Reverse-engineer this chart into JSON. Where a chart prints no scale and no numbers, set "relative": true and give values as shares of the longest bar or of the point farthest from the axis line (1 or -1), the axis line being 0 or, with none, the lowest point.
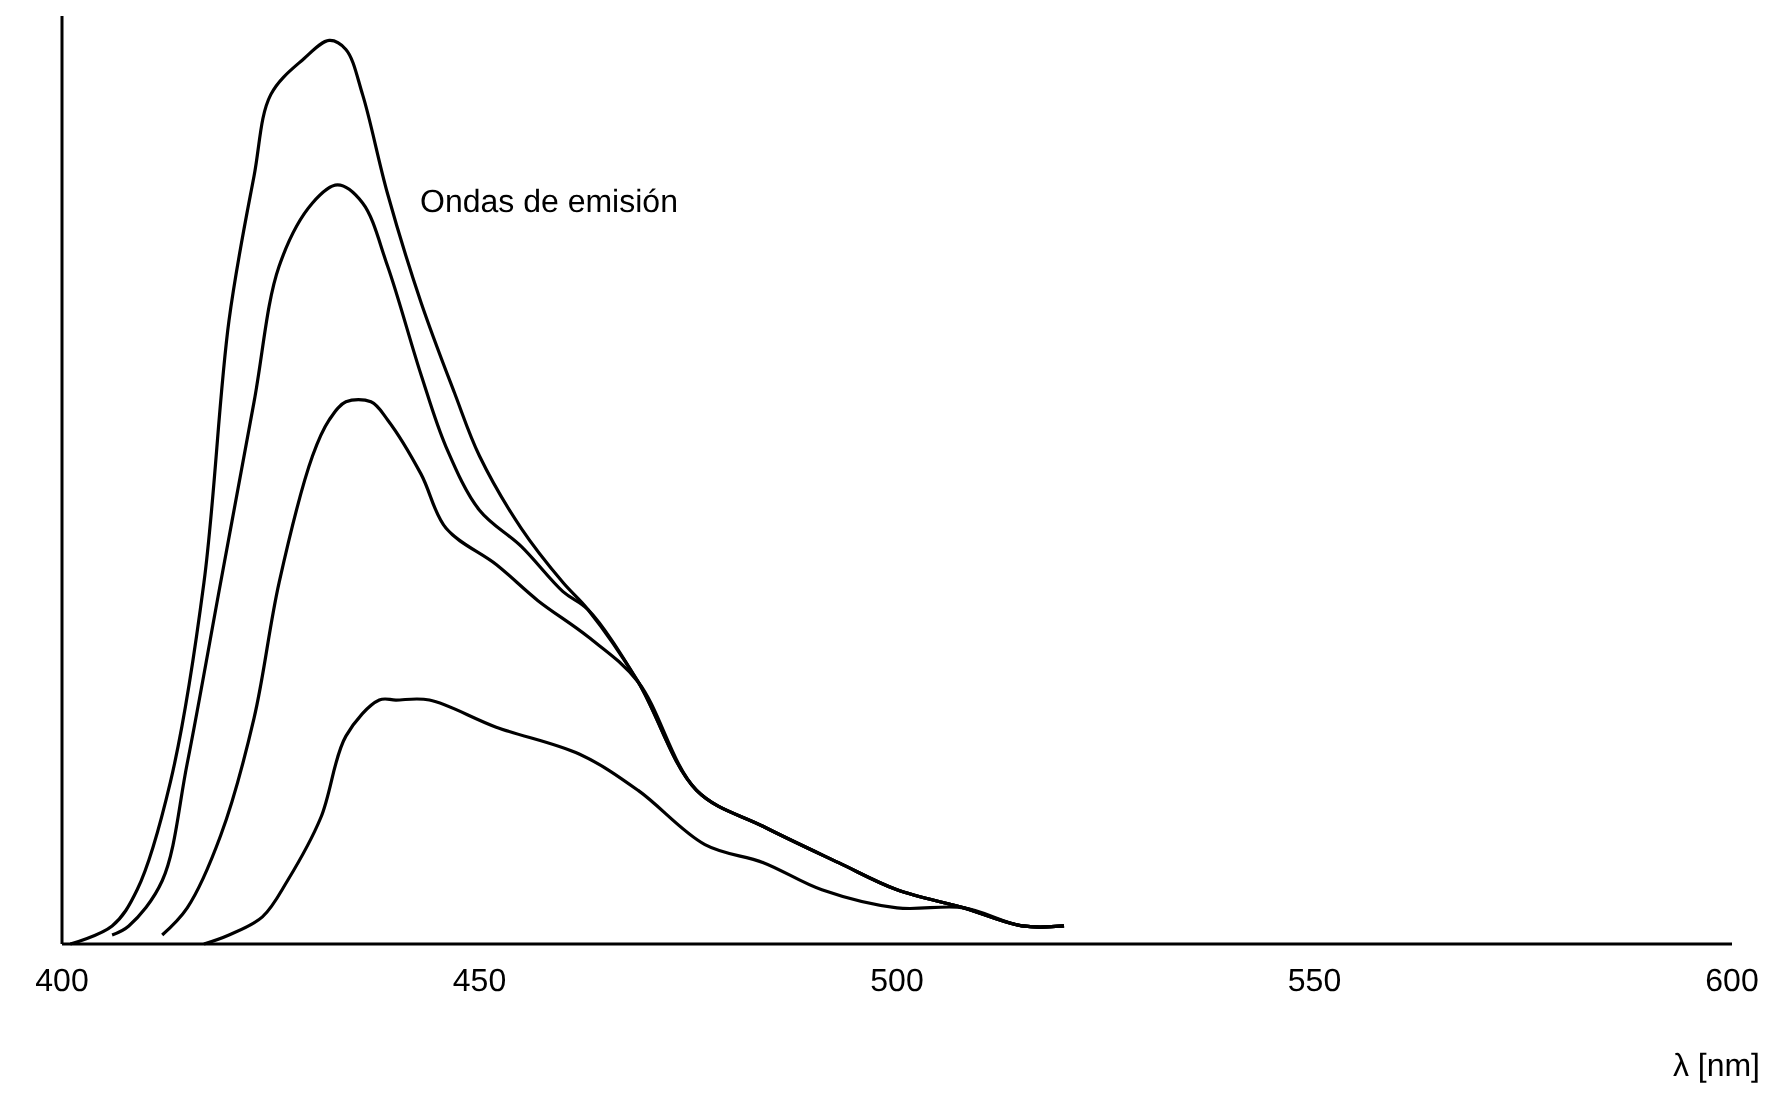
{
  "chart_data": {
    "type": "line",
    "relative": true,
    "xlabel": "λ [nm]",
    "annotations": [
      "Ondas de emisión"
    ],
    "xlim": [
      400,
      600
    ],
    "xticks": [
      400,
      450,
      500,
      550,
      600
    ],
    "tick_labels": "x",
    "grid": false,
    "marker": "none",
    "line_style": "solid",
    "series": [
      {
        "color": "#000000",
        "x": [
          401,
          406,
          409,
          413,
          417,
          420,
          423,
          425,
          429,
          432,
          434,
          436,
          439,
          443,
          447,
          450,
          455,
          460,
          463,
          469,
          476,
          484,
          493,
          500,
          508,
          515,
          520
        ],
        "values": [
          0.0,
          0.02,
          0.06,
          0.18,
          0.4,
          0.69,
          0.85,
          0.94,
          0.98,
          1.0,
          0.99,
          0.94,
          0.83,
          0.71,
          0.61,
          0.54,
          0.46,
          0.4,
          0.37,
          0.29,
          0.17,
          0.13,
          0.09,
          0.06,
          0.04,
          0.02,
          0.02
        ]
      },
      {
        "color": "#000000",
        "x": [
          406,
          408,
          412,
          415,
          419,
          423,
          426,
          430,
          433,
          436,
          439,
          443,
          446,
          450,
          455,
          460,
          463,
          469,
          476,
          484,
          493,
          500,
          508,
          515,
          520
        ],
        "values": [
          0.01,
          0.02,
          0.07,
          0.2,
          0.4,
          0.6,
          0.75,
          0.82,
          0.84,
          0.82,
          0.75,
          0.63,
          0.55,
          0.48,
          0.44,
          0.39,
          0.37,
          0.29,
          0.17,
          0.13,
          0.09,
          0.06,
          0.04,
          0.02,
          0.02
        ]
      },
      {
        "color": "#000000",
        "x": [
          412,
          415,
          419,
          423,
          426,
          430,
          432,
          434,
          437,
          439,
          443,
          446,
          452,
          457,
          463,
          469,
          476,
          484,
          493,
          500,
          508,
          515,
          520
        ],
        "values": [
          0.01,
          0.04,
          0.12,
          0.25,
          0.4,
          0.54,
          0.58,
          0.6,
          0.6,
          0.58,
          0.52,
          0.46,
          0.42,
          0.38,
          0.34,
          0.29,
          0.17,
          0.13,
          0.09,
          0.06,
          0.04,
          0.02,
          0.02
        ]
      },
      {
        "color": "#000000",
        "x": [
          417,
          420,
          424,
          427,
          431,
          434,
          438,
          440,
          444,
          452,
          462,
          469,
          477,
          484,
          491,
          500,
          508,
          515,
          520
        ],
        "values": [
          0.0,
          0.01,
          0.03,
          0.07,
          0.14,
          0.23,
          0.27,
          0.27,
          0.27,
          0.24,
          0.21,
          0.17,
          0.11,
          0.09,
          0.06,
          0.04,
          0.04,
          0.02,
          0.02
        ]
      }
    ]
  }
}
